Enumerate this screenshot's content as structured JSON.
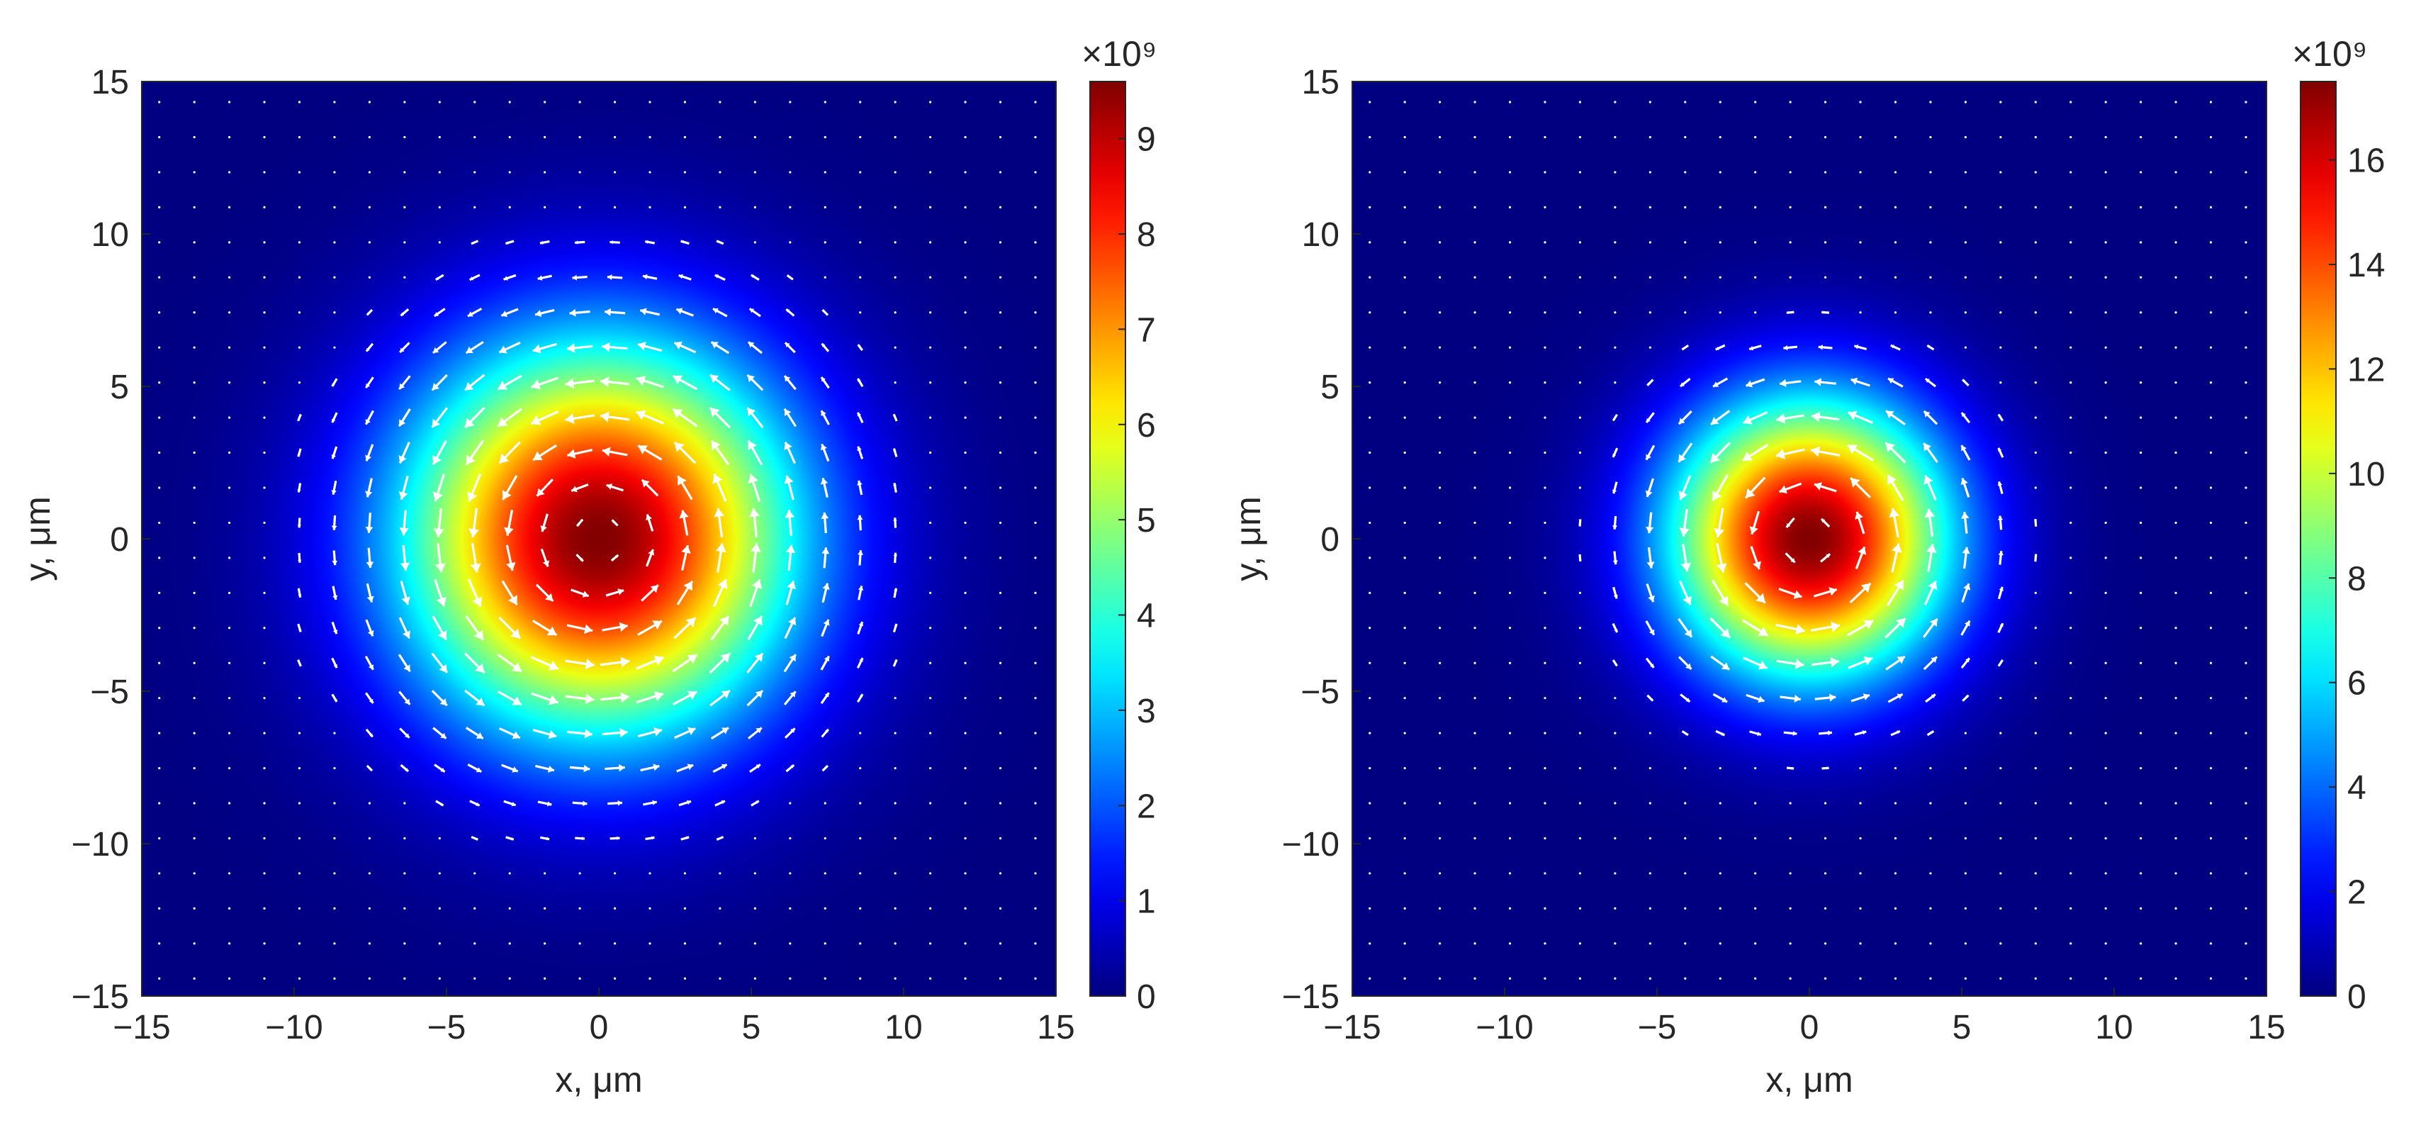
{
  "chart_data": [
    {
      "type": "heatmap",
      "panel": "left",
      "xlabel": "x, μm",
      "ylabel": "y, μm",
      "xlim": [
        -15,
        15
      ],
      "ylim": [
        -15,
        15
      ],
      "xticks": [
        -15,
        -10,
        -5,
        0,
        5,
        10,
        15
      ],
      "yticks": [
        -15,
        -10,
        -5,
        0,
        5,
        10,
        15
      ],
      "tick_labels_x": [
        "−15",
        "−10",
        "−5",
        "0",
        "5",
        "10",
        "15"
      ],
      "tick_labels_y": [
        "−15",
        "−10",
        "−5",
        "0",
        "5",
        "10",
        "15"
      ],
      "colormap": "jet",
      "colorbar": {
        "range": [
          0,
          9.6
        ],
        "ticks": [
          0,
          1,
          2,
          3,
          4,
          5,
          6,
          7,
          8,
          9
        ],
        "tick_labels": [
          "0",
          "1",
          "2",
          "3",
          "4",
          "5",
          "6",
          "7",
          "8",
          "9"
        ],
        "exponent_label": "×10⁹"
      },
      "field": {
        "peak": 9.6,
        "peak_center": [
          0,
          0
        ],
        "radial_width_um": 4.5,
        "rotation": "counter-clockwise",
        "grid_spacing_um": 1.15
      },
      "vector_overlay": {
        "color": "#ffffff",
        "type": "quiver"
      }
    },
    {
      "type": "heatmap",
      "panel": "right",
      "xlabel": "x, μm",
      "ylabel": "y, μm",
      "xlim": [
        -15,
        15
      ],
      "ylim": [
        -15,
        15
      ],
      "xticks": [
        -15,
        -10,
        -5,
        0,
        5,
        10,
        15
      ],
      "yticks": [
        -15,
        -10,
        -5,
        0,
        5,
        10,
        15
      ],
      "tick_labels_x": [
        "−15",
        "−10",
        "−5",
        "0",
        "5",
        "10",
        "15"
      ],
      "tick_labels_y": [
        "−15",
        "−10",
        "−5",
        "0",
        "5",
        "10",
        "15"
      ],
      "colormap": "jet",
      "colorbar": {
        "range": [
          0,
          17.5
        ],
        "ticks": [
          0,
          2,
          4,
          6,
          8,
          10,
          12,
          14,
          16
        ],
        "tick_labels": [
          "0",
          "2",
          "4",
          "6",
          "8",
          "10",
          "12",
          "14",
          "16"
        ],
        "exponent_label": "×10⁹"
      },
      "field": {
        "peak": 17.5,
        "peak_center": [
          0,
          0
        ],
        "radial_width_um": 3.2,
        "rotation": "counter-clockwise",
        "grid_spacing_um": 1.15
      },
      "vector_overlay": {
        "color": "#ffffff",
        "type": "quiver"
      }
    }
  ],
  "colors": {
    "background": "#ffffff",
    "axis": "#262626",
    "arrow": "#ffffff",
    "jet_low": "#00007f",
    "jet_high": "#7f0000"
  }
}
